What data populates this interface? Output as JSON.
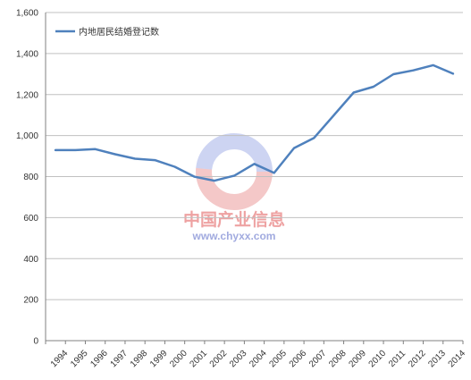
{
  "chart_data": {
    "type": "line",
    "categories": [
      "1994",
      "1995",
      "1996",
      "1997",
      "1998",
      "1999",
      "2000",
      "2001",
      "2002",
      "2003",
      "2004",
      "2005",
      "2006",
      "2007",
      "2008",
      "2009",
      "2010",
      "2011",
      "2012",
      "2013",
      "2014"
    ],
    "series": [
      {
        "name": "内地居民结婚登记数",
        "values": [
          929,
          929,
          934,
          909,
          887,
          880,
          848,
          799,
          780,
          805,
          862,
          818,
          939,
          988,
          1099,
          1210,
          1238,
          1299,
          1318,
          1343,
          1302
        ],
        "color": "#4f81bd"
      }
    ],
    "ylim": [
      0,
      1600
    ],
    "yticks": [
      "0",
      "200",
      "400",
      "600",
      "800",
      "1,000",
      "1,200",
      "1,400",
      "1,600"
    ],
    "grid": "horizontal",
    "legend_position": "top-left"
  },
  "watermark": {
    "brand": "中国产业信息",
    "url": "www.chyxx.com",
    "colors": {
      "red": "#e06060",
      "blue": "#6f84d9"
    }
  }
}
